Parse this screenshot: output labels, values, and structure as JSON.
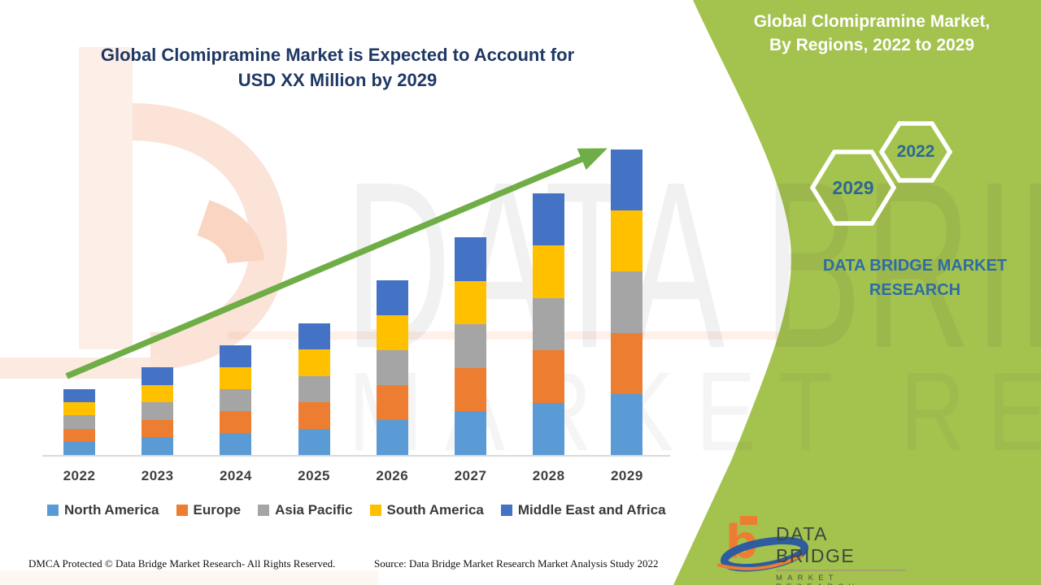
{
  "header": {
    "title_line1": "Global Clomipramine Market is Expected to Account for",
    "title_line2": "USD XX Million by 2029"
  },
  "side_panel": {
    "heading_line1": "Global Clomipramine Market,",
    "heading_line2": "By Regions, 2022 to 2029",
    "year_hex_top": "2022",
    "year_hex_bottom": "2029",
    "brand_line1": "DATA BRIDGE MARKET",
    "brand_line2": "RESEARCH",
    "bg_color": "#a4c24e",
    "heading_color": "#ffffff",
    "accent_text_color": "#2e6da4"
  },
  "chart_data": {
    "type": "bar",
    "subtype": "stacked-vertical",
    "title": "Global Clomipramine Market is Expected to Account for USD XX Million by 2029",
    "categories": [
      "2022",
      "2023",
      "2024",
      "2025",
      "2026",
      "2027",
      "2028",
      "2029"
    ],
    "series": [
      {
        "name": "North America",
        "color": "#5b9bd5",
        "values": [
          16.2,
          21.6,
          27,
          32.4,
          43,
          53.6,
          64.4,
          75.2
        ]
      },
      {
        "name": "Europe",
        "color": "#ed7d31",
        "values": [
          16.2,
          21.6,
          27,
          32.4,
          43,
          53.6,
          64.4,
          75.2
        ]
      },
      {
        "name": "Asia Pacific",
        "color": "#a5a5a5",
        "values": [
          16.2,
          21.6,
          27,
          32.4,
          43,
          53.6,
          64.4,
          75.2
        ]
      },
      {
        "name": "South America",
        "color": "#ffc000",
        "values": [
          16.2,
          21.6,
          27,
          32.4,
          43,
          53.6,
          64.4,
          75.2
        ]
      },
      {
        "name": "Middle East and Africa",
        "color": "#4472c4",
        "values": [
          16.2,
          21.6,
          27,
          32.4,
          43,
          53.6,
          64.4,
          75.2
        ]
      }
    ],
    "stack_totals": [
      81,
      108,
      135,
      162,
      215,
      268,
      322,
      376
    ],
    "value_axis": "unlabeled (values shown as USD XX Million)",
    "units": "relative (pixel-proportional, actual values not disclosed)",
    "legend_position": "bottom",
    "grid": false,
    "trend_arrow": true,
    "trend_arrow_color": "#6fae46"
  },
  "watermark": {
    "line1": "DATA BRIDGE",
    "line2": "MARKET RESEARCH"
  },
  "footer": {
    "dmca": "DMCA Protected © Data Bridge Market Research- All Rights Reserved.",
    "source": "Source: Data Bridge Market Research Market Analysis Study 2022"
  },
  "logo": {
    "mark_letter": "b",
    "name": "DATA BRIDGE",
    "tagline": "MARKET RESEARCH"
  }
}
